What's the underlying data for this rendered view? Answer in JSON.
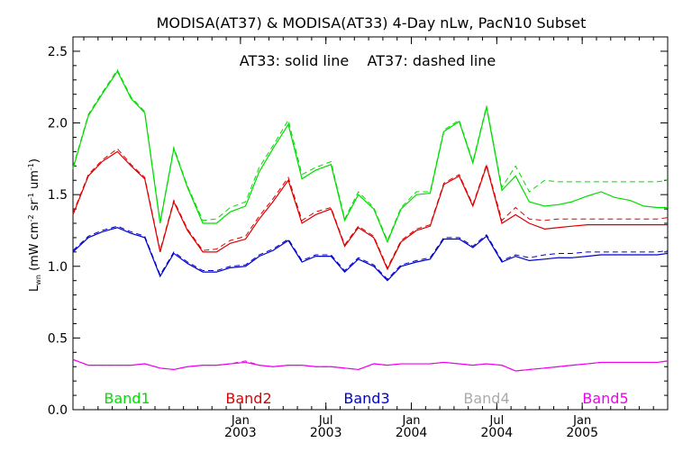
{
  "chart_data": {
    "type": "line",
    "title": "MODISA(AT37) & MODISA(AT33) 4-Day nLw, PacN10 Subset",
    "annotation": "AT33: solid line    AT37: dashed line",
    "ylabel_main": "L",
    "ylabel_sub": "wn",
    "ylabel_units": " (mW cm",
    "ylabel_exp1": "-2",
    "ylabel_sr": " sr",
    "ylabel_exp2": "-1",
    "ylabel_um": " um",
    "ylabel_exp3": "-1",
    "ylabel_close": ")",
    "ylim": [
      0.0,
      2.6
    ],
    "yticks": [
      "0.0",
      "0.5",
      "1.0",
      "1.5",
      "2.0",
      "2.5"
    ],
    "x_ticks": [
      {
        "month": "Jan",
        "year": "2003",
        "x": 2003.0
      },
      {
        "month": "Jul",
        "year": "2003",
        "x": 2003.5
      },
      {
        "month": "Jan",
        "year": "2004",
        "x": 2004.0
      },
      {
        "month": "Jul",
        "year": "2004",
        "x": 2004.5
      },
      {
        "month": "Jan",
        "year": "2005",
        "x": 2005.0
      }
    ],
    "xlim": [
      2002.02,
      2005.5
    ],
    "x": [
      2002.02,
      2002.11,
      2002.19,
      2002.28,
      2002.36,
      2002.44,
      2002.53,
      2002.61,
      2002.69,
      2002.78,
      2002.86,
      2002.94,
      2003.03,
      2003.11,
      2003.19,
      2003.28,
      2003.36,
      2003.44,
      2003.53,
      2003.61,
      2003.69,
      2003.78,
      2003.86,
      2003.94,
      2004.03,
      2004.11,
      2004.19,
      2004.28,
      2004.36,
      2004.44,
      2004.53,
      2004.61,
      2004.69,
      2004.78,
      2004.86,
      2004.94,
      2005.03,
      2005.11,
      2005.19,
      2005.28,
      2005.36,
      2005.44,
      2005.5
    ],
    "series": [
      {
        "name": "Band1",
        "color": "#00dd00",
        "values": [
          1.68,
          2.05,
          2.2,
          2.36,
          2.17,
          2.07,
          1.3,
          1.82,
          1.55,
          1.3,
          1.3,
          1.38,
          1.42,
          1.66,
          1.82,
          1.99,
          1.61,
          1.67,
          1.71,
          1.32,
          1.5,
          1.4,
          1.17,
          1.4,
          1.5,
          1.51,
          1.94,
          2.01,
          1.72,
          2.11,
          1.53,
          1.63,
          1.45,
          1.42,
          1.43,
          1.45,
          1.49,
          1.52,
          1.48,
          1.46,
          1.42,
          1.41,
          1.41
        ],
        "dashed": [
          1.69,
          2.06,
          2.21,
          2.37,
          2.18,
          2.08,
          1.31,
          1.83,
          1.56,
          1.32,
          1.33,
          1.41,
          1.45,
          1.69,
          1.84,
          2.02,
          1.64,
          1.69,
          1.73,
          1.33,
          1.52,
          1.41,
          1.18,
          1.41,
          1.52,
          1.52,
          1.95,
          2.02,
          1.73,
          2.12,
          1.55,
          1.7,
          1.52,
          1.6,
          1.59,
          1.59,
          1.59,
          1.59,
          1.59,
          1.59,
          1.59,
          1.59,
          1.6
        ]
      },
      {
        "name": "Band2",
        "color": "#dd0000",
        "values": [
          1.36,
          1.63,
          1.73,
          1.8,
          1.7,
          1.61,
          1.1,
          1.45,
          1.25,
          1.1,
          1.1,
          1.16,
          1.19,
          1.33,
          1.45,
          1.6,
          1.3,
          1.36,
          1.4,
          1.14,
          1.27,
          1.2,
          0.98,
          1.17,
          1.25,
          1.28,
          1.57,
          1.63,
          1.42,
          1.7,
          1.3,
          1.36,
          1.3,
          1.26,
          1.27,
          1.28,
          1.29,
          1.29,
          1.29,
          1.29,
          1.29,
          1.29,
          1.29
        ],
        "dashed": [
          1.37,
          1.64,
          1.74,
          1.82,
          1.71,
          1.62,
          1.11,
          1.46,
          1.26,
          1.11,
          1.12,
          1.18,
          1.21,
          1.35,
          1.47,
          1.62,
          1.32,
          1.38,
          1.41,
          1.15,
          1.28,
          1.21,
          0.99,
          1.18,
          1.26,
          1.29,
          1.58,
          1.64,
          1.43,
          1.71,
          1.32,
          1.41,
          1.33,
          1.32,
          1.33,
          1.33,
          1.33,
          1.33,
          1.33,
          1.33,
          1.33,
          1.33,
          1.34
        ]
      },
      {
        "name": "Band3",
        "color": "#0000cc",
        "values": [
          1.1,
          1.2,
          1.24,
          1.27,
          1.23,
          1.2,
          0.93,
          1.09,
          1.02,
          0.96,
          0.96,
          0.99,
          1.0,
          1.07,
          1.11,
          1.18,
          1.03,
          1.07,
          1.07,
          0.96,
          1.05,
          1.0,
          0.9,
          1.0,
          1.03,
          1.05,
          1.19,
          1.19,
          1.13,
          1.21,
          1.03,
          1.07,
          1.04,
          1.05,
          1.06,
          1.06,
          1.07,
          1.08,
          1.08,
          1.08,
          1.08,
          1.08,
          1.09
        ],
        "dashed": [
          1.11,
          1.21,
          1.25,
          1.28,
          1.24,
          1.21,
          0.94,
          1.1,
          1.03,
          0.97,
          0.97,
          1.0,
          1.01,
          1.08,
          1.12,
          1.19,
          1.04,
          1.08,
          1.08,
          0.97,
          1.06,
          1.01,
          0.91,
          1.01,
          1.04,
          1.06,
          1.2,
          1.2,
          1.14,
          1.22,
          1.04,
          1.08,
          1.06,
          1.08,
          1.09,
          1.09,
          1.1,
          1.1,
          1.1,
          1.1,
          1.1,
          1.1,
          1.11
        ]
      },
      {
        "name": "Band5",
        "color": "#ee00ee",
        "values": [
          0.35,
          0.31,
          0.31,
          0.31,
          0.31,
          0.32,
          0.29,
          0.28,
          0.3,
          0.31,
          0.31,
          0.32,
          0.33,
          0.31,
          0.3,
          0.31,
          0.31,
          0.3,
          0.3,
          0.29,
          0.28,
          0.32,
          0.31,
          0.32,
          0.32,
          0.32,
          0.33,
          0.32,
          0.31,
          0.32,
          0.31,
          0.27,
          0.28,
          0.29,
          0.3,
          0.31,
          0.32,
          0.33,
          0.33,
          0.33,
          0.33,
          0.33,
          0.34
        ],
        "dashed": [
          0.35,
          0.31,
          0.31,
          0.31,
          0.31,
          0.32,
          0.29,
          0.28,
          0.3,
          0.31,
          0.31,
          0.32,
          0.34,
          0.31,
          0.3,
          0.31,
          0.31,
          0.3,
          0.3,
          0.29,
          0.28,
          0.32,
          0.31,
          0.32,
          0.32,
          0.32,
          0.33,
          0.32,
          0.31,
          0.32,
          0.31,
          0.27,
          0.28,
          0.29,
          0.3,
          0.31,
          0.32,
          0.33,
          0.33,
          0.33,
          0.33,
          0.33,
          0.34
        ]
      }
    ],
    "band_labels": [
      {
        "text": "Band1",
        "color": "#00dd00"
      },
      {
        "text": "Band2",
        "color": "#dd0000"
      },
      {
        "text": "Band3",
        "color": "#0000cc"
      },
      {
        "text": "Band4",
        "color": "#aaaaaa"
      },
      {
        "text": "Band5",
        "color": "#ee00ee"
      }
    ]
  }
}
